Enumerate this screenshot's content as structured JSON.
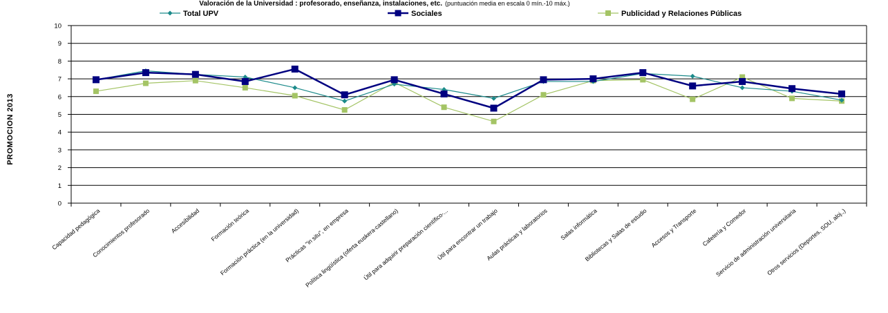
{
  "chart_data": {
    "type": "line",
    "title": "Valoración de la Universidad : profesorado, enseñanza, instalaciones, etc.",
    "subtitle": "(puntuación media en escala 0 mín.-10 máx.)",
    "ylabel": "PROMOCION  2013",
    "xlabel": "",
    "ylim": [
      0,
      10
    ],
    "yticks": [
      0,
      1,
      2,
      3,
      4,
      5,
      6,
      7,
      8,
      9,
      10
    ],
    "grid": true,
    "legend_position": "top",
    "categories": [
      "Capacidad pedagógica",
      "Conocimientos profesorado",
      "Accesibilidad",
      "Formación teórica",
      "Formación práctica (en la universidad)",
      "Prácticas \"in situ\", en empresa",
      "Política lingüística (oferta euskera-castellano)",
      "Útil para adquirir preparación científico-...",
      "Útil para encontrar un trabajo",
      "Aulas prácticas y laboratorios",
      "Salas informática",
      "Bibliotecas y Salas de estudio",
      "Accesos y Transporte",
      "Cafetería y Comedor",
      "Servicio de administración universitaria",
      "Otros servicios (Deportes, SOU, aloj.,)"
    ],
    "series": [
      {
        "name": "Total UPV",
        "color": "#1b8a8a",
        "marker": "diamond",
        "values": [
          6.95,
          7.45,
          7.25,
          7.1,
          6.5,
          5.75,
          6.7,
          6.4,
          5.9,
          6.85,
          6.85,
          7.3,
          7.15,
          6.5,
          6.3,
          5.8
        ]
      },
      {
        "name": "Sociales",
        "color": "#000080",
        "marker": "square",
        "values": [
          6.95,
          7.35,
          7.25,
          6.85,
          7.55,
          6.1,
          6.95,
          6.15,
          5.35,
          6.95,
          7.0,
          7.35,
          6.6,
          6.85,
          6.45,
          6.15
        ]
      },
      {
        "name": "Publicidad y Relaciones Públicas",
        "color": "#a4c465",
        "marker": "square",
        "values": [
          6.3,
          6.75,
          6.9,
          6.5,
          6.05,
          5.25,
          6.8,
          5.4,
          4.6,
          6.1,
          6.9,
          6.95,
          5.85,
          7.1,
          5.9,
          5.75
        ]
      }
    ]
  }
}
